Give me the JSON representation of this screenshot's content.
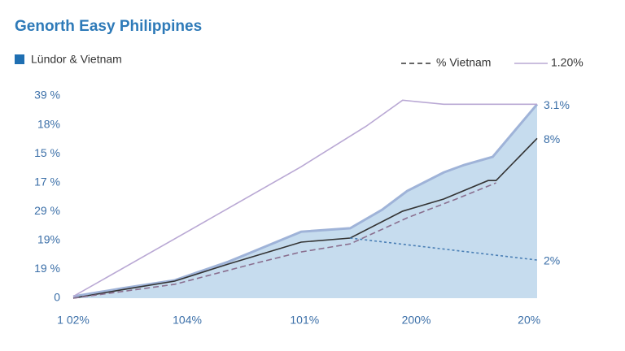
{
  "chart_data": {
    "type": "line",
    "title": "Genorth Easy Philippines",
    "xlim": [
      0,
      4.07
    ],
    "ylim": [
      0,
      7
    ],
    "xticks": [
      {
        "value": 0,
        "label": "1 02%"
      },
      {
        "value": 1,
        "label": "104%"
      },
      {
        "value": 2.03,
        "label": "101%"
      },
      {
        "value": 3.01,
        "label": "200%"
      },
      {
        "value": 4,
        "label": "20%"
      }
    ],
    "yticks": [
      {
        "value": 0,
        "label": "0"
      },
      {
        "value": 1,
        "label": "19 %"
      },
      {
        "value": 2,
        "label": "19%"
      },
      {
        "value": 3,
        "label": "29 %"
      },
      {
        "value": 4,
        "label": "17 %"
      },
      {
        "value": 5,
        "label": "15 %"
      },
      {
        "value": 6,
        "label": "18%"
      },
      {
        "value": 7,
        "label": "39 %"
      }
    ],
    "series": [
      {
        "name": "Lündor & Vietnam",
        "style": "area",
        "color": "#9fb3d8",
        "fill": "#c6dcee",
        "x": [
          0,
          0.43,
          0.89,
          1.36,
          1.57,
          2,
          2.43,
          2.71,
          2.93,
          3.25,
          3.43,
          3.68,
          4.07
        ],
        "values": [
          0.06,
          0.34,
          0.62,
          1.26,
          1.6,
          2.3,
          2.42,
          3.06,
          3.71,
          4.35,
          4.61,
          4.89,
          6.71
        ]
      },
      {
        "style": "solid",
        "color": "#333333",
        "x": [
          0,
          0.5,
          0.89,
          1.36,
          2,
          2.43,
          2.89,
          3.25,
          3.64,
          3.71,
          4.07
        ],
        "values": [
          0,
          0.34,
          0.59,
          1.18,
          1.94,
          2.08,
          3.01,
          3.43,
          4.07,
          4.07,
          5.53
        ]
      },
      {
        "name": "% Vietnam",
        "style": "dashed",
        "color": "#8a6f8f",
        "x": [
          0,
          0.89,
          1.57,
          2,
          2.43,
          2.93,
          3.36,
          3.71
        ],
        "values": [
          0,
          0.48,
          1.18,
          1.6,
          1.88,
          2.78,
          3.43,
          3.99
        ]
      },
      {
        "style": "dotted",
        "color": "#4a7fb5",
        "x": [
          2.43,
          4.07
        ],
        "values": [
          2.08,
          1.32
        ]
      },
      {
        "name": "1.20%",
        "style": "solid",
        "color": "#b9a8d4",
        "x": [
          0,
          1,
          2,
          2.57,
          2.89,
          3.25,
          4.07
        ],
        "values": [
          0.06,
          2.3,
          4.55,
          5.95,
          6.85,
          6.71,
          6.71
        ]
      }
    ],
    "annotations": [
      "3.1%",
      "8%",
      "2%"
    ]
  }
}
